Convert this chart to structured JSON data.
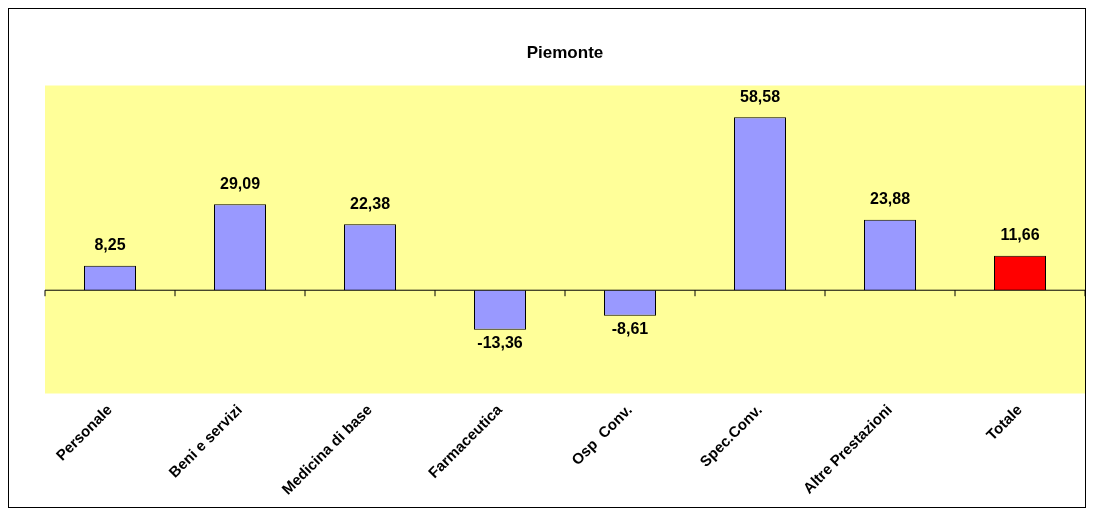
{
  "chart_data": {
    "type": "bar",
    "title": "Piemonte",
    "categories": [
      "Personale",
      "Beni e servizi",
      "Medicina di base",
      "Farmaceutica",
      "Osp  Conv.",
      "Spec.Conv.",
      "Altre Prestazioni",
      "Totale"
    ],
    "values": [
      8.25,
      29.09,
      22.38,
      -13.36,
      -8.61,
      58.58,
      23.88,
      11.66
    ],
    "colors": [
      "#9999ff",
      "#9999ff",
      "#9999ff",
      "#9999ff",
      "#9999ff",
      "#9999ff",
      "#9999ff",
      "#ff0000"
    ],
    "value_labels": [
      "8,25",
      "29,09",
      "22,38",
      "-13,36",
      "-8,61",
      "58,58",
      "23,88",
      "11,66"
    ],
    "grid": false,
    "legend": false
  }
}
